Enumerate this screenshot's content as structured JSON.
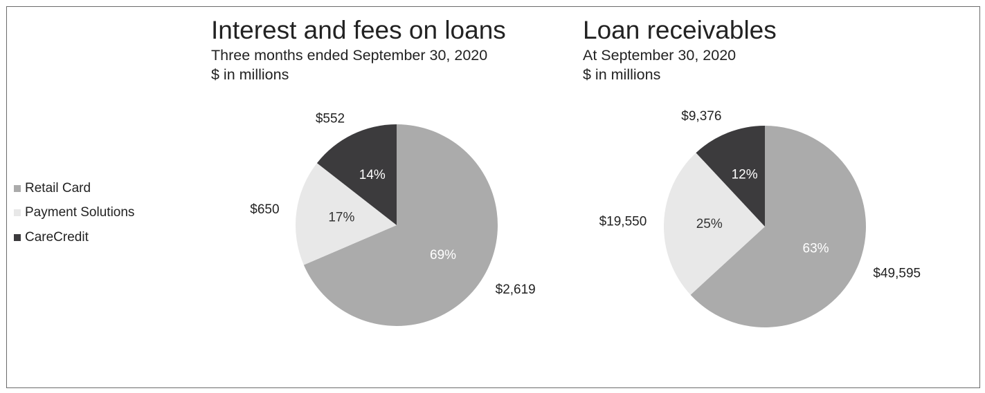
{
  "colors": {
    "Retail Card": "#ababab",
    "Payment Solutions": "#e8e8e8",
    "CareCredit": "#3c3b3d"
  },
  "legend": {
    "placement": "left",
    "items": [
      {
        "label": "Retail Card"
      },
      {
        "label": "Payment Solutions"
      },
      {
        "label": "CareCredit"
      }
    ]
  },
  "chart_data": [
    {
      "type": "pie",
      "title": "Interest and fees on loans",
      "subtitle_1": "Three months ended September 30, 2020",
      "subtitle_2": "$ in millions",
      "slices": [
        {
          "name": "Retail Card",
          "value": 2619,
          "value_label": "$2,619",
          "percent_label": "69%"
        },
        {
          "name": "Payment Solutions",
          "value": 650,
          "value_label": "$650",
          "percent_label": "17%"
        },
        {
          "name": "CareCredit",
          "value": 552,
          "value_label": "$552",
          "percent_label": "14%"
        }
      ]
    },
    {
      "type": "pie",
      "title": "Loan receivables",
      "subtitle_1": "At September 30, 2020",
      "subtitle_2": "$ in millions",
      "slices": [
        {
          "name": "Retail Card",
          "value": 49595,
          "value_label": "$49,595",
          "percent_label": "63%"
        },
        {
          "name": "Payment Solutions",
          "value": 19550,
          "value_label": "$19,550",
          "percent_label": "25%"
        },
        {
          "name": "CareCredit",
          "value": 9376,
          "value_label": "$9,376",
          "percent_label": "12%"
        }
      ]
    }
  ]
}
